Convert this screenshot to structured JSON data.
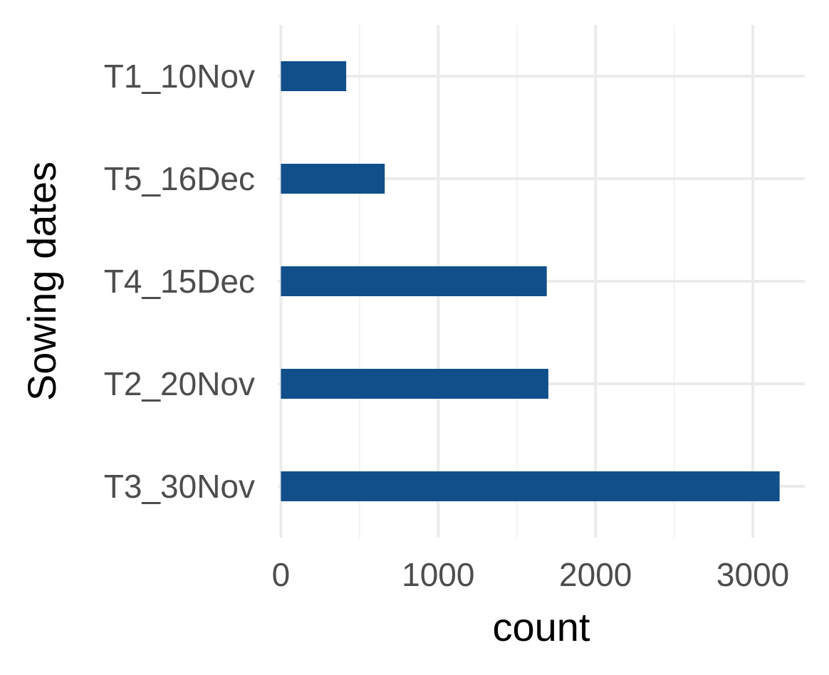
{
  "chart_data": {
    "type": "bar",
    "orientation": "horizontal",
    "categories": [
      "T1_10Nov",
      "T5_16Dec",
      "T4_15Dec",
      "T2_20Nov",
      "T3_30Nov"
    ],
    "values": [
      415,
      660,
      1690,
      1700,
      3170
    ],
    "xlabel": "count",
    "ylabel": "Sowing dates",
    "xlim": [
      -20,
      3330
    ],
    "xticks": [
      0,
      1000,
      2000,
      3000
    ],
    "xtick_labels": [
      "0",
      "1000",
      "2000",
      "3000"
    ],
    "grid": true,
    "legend": "none",
    "colors": {
      "bar": "#114f8b",
      "grid_major": "#ebebeb",
      "grid_minor": "#f2f2f2",
      "tick_text": "#4d4d4d",
      "title_text": "#000000"
    }
  }
}
